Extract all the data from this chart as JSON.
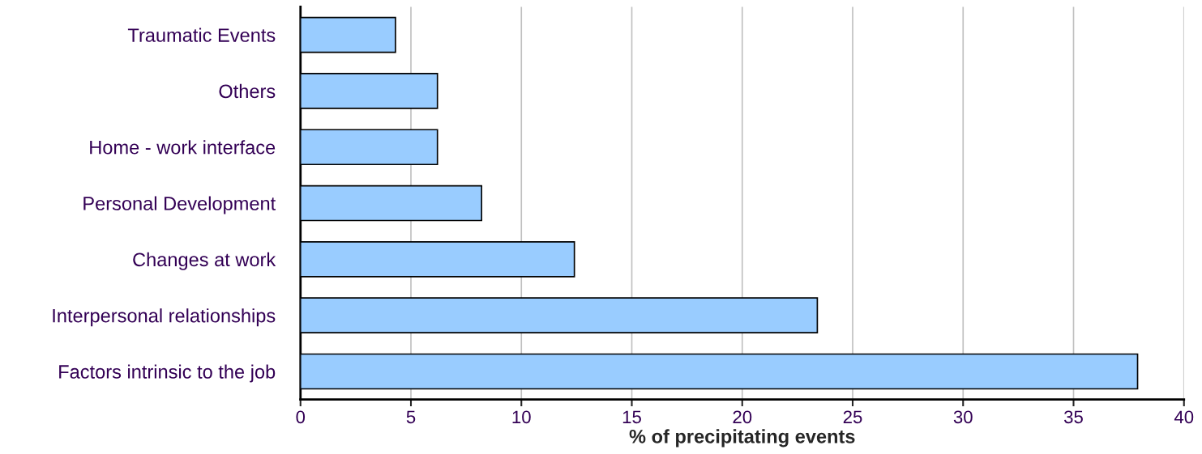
{
  "chart_data": {
    "type": "bar",
    "orientation": "horizontal",
    "xlabel": "% of precipitating events",
    "categories": [
      "Traumatic Events",
      "Others",
      "Home - work interface",
      "Personal Development",
      "Changes at work",
      "Interpersonal relationships",
      "Factors intrinsic to the job"
    ],
    "values": [
      4.3,
      6.2,
      6.2,
      8.2,
      12.4,
      23.4,
      37.9
    ],
    "color": "#99ccff",
    "xlim": [
      0,
      40
    ],
    "xticks": [
      0,
      5,
      10,
      15,
      20,
      25,
      30,
      35,
      40
    ],
    "grid": "x"
  }
}
